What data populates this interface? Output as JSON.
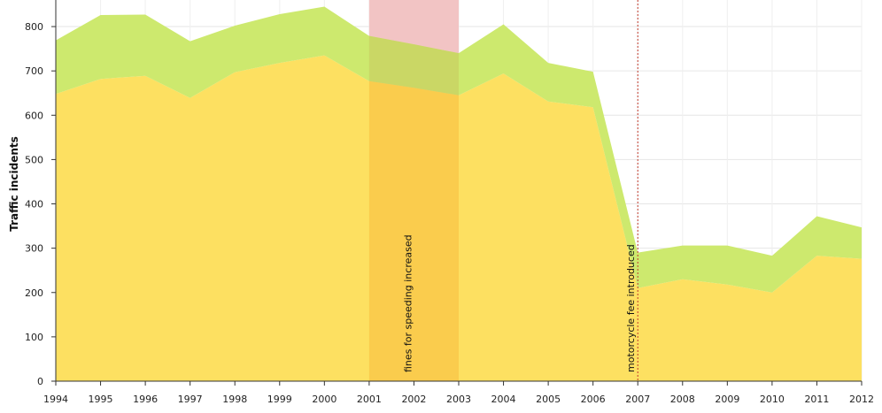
{
  "chart_data": {
    "type": "area",
    "stacked": true,
    "ylabel": "Traffic incidents",
    "xlabel": "",
    "ylim": [
      0,
      850
    ],
    "yticks": [
      0,
      100,
      200,
      300,
      400,
      500,
      600,
      700,
      800
    ],
    "x": [
      1994,
      1995,
      1996,
      1997,
      1998,
      1999,
      2000,
      2001,
      2002,
      2003,
      2004,
      2005,
      2006,
      2007,
      2008,
      2009,
      2010,
      2011,
      2012
    ],
    "series": [
      {
        "color": "#fde061",
        "values": [
          648,
          682,
          689,
          639,
          697,
          718,
          735,
          677,
          662,
          645,
          694,
          631,
          618,
          210,
          230,
          218,
          200,
          283,
          276
        ]
      },
      {
        "color": "#cde96e",
        "values": [
          121,
          144,
          138,
          128,
          105,
          110,
          110,
          102,
          98,
          95,
          111,
          87,
          80,
          80,
          76,
          88,
          83,
          89,
          71
        ]
      }
    ],
    "grid": true,
    "legend": "none",
    "guides": [
      {
        "type": "band",
        "from": 2001,
        "to": 2003,
        "label": "fines for speeding increased",
        "above_color": "#f2c4c4",
        "below_color": "#f9c84a"
      },
      {
        "type": "line",
        "at": 2007,
        "label": "motorcycle fee introduced",
        "color": "#c0392b"
      }
    ]
  }
}
